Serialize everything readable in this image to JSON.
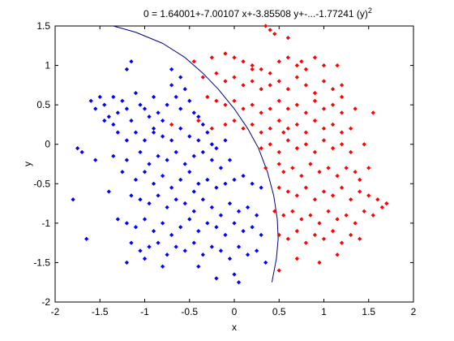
{
  "chart_data": {
    "type": "scatter",
    "title": "0 = 1.64001+-7.00107 x+-3.85508 y+-...-1.77241 (y)",
    "title_superscript": "2",
    "xlabel": "x",
    "ylabel": "y",
    "xlim": [
      -2,
      2
    ],
    "ylim": [
      -2,
      1.5
    ],
    "xticks": [
      "-2",
      "-1.5",
      "-1",
      "-0.5",
      "0",
      "0.5",
      "1",
      "1.5",
      "2"
    ],
    "yticks": [
      "-2",
      "-1.5",
      "-1",
      "-0.5",
      "0",
      "0.5",
      "1",
      "1.5"
    ],
    "grid": false,
    "colors": {
      "class_blue": "#0000ff",
      "class_red": "#ff0000",
      "boundary": "#000080"
    },
    "series": [
      {
        "color": "#0000ff",
        "marker": "diamond",
        "points": [
          [
            -1.6,
            0.55
          ],
          [
            -1.55,
            0.45
          ],
          [
            -1.5,
            0.6
          ],
          [
            -1.45,
            0.5
          ],
          [
            -1.4,
            0.35
          ],
          [
            -1.35,
            0.25
          ],
          [
            -1.3,
            0.4
          ],
          [
            -1.25,
            0.55
          ],
          [
            -1.2,
            0.45
          ],
          [
            -1.15,
            0.3
          ],
          [
            -1.1,
            0.65
          ],
          [
            -1.05,
            0.5
          ],
          [
            -1.0,
            0.45
          ],
          [
            -0.95,
            0.35
          ],
          [
            -0.9,
            0.6
          ],
          [
            -0.85,
            0.4
          ],
          [
            -0.8,
            0.3
          ],
          [
            -0.75,
            0.5
          ],
          [
            -0.7,
            0.75
          ],
          [
            -0.65,
            0.6
          ],
          [
            -0.6,
            0.45
          ],
          [
            -0.55,
            0.7
          ],
          [
            -0.5,
            0.55
          ],
          [
            -0.45,
            0.4
          ],
          [
            -0.4,
            0.35
          ],
          [
            -0.35,
            0.25
          ],
          [
            -1.2,
            0.95
          ],
          [
            -1.15,
            1.05
          ],
          [
            -0.7,
            0.95
          ],
          [
            -0.6,
            0.85
          ],
          [
            -1.3,
            0.15
          ],
          [
            -1.2,
            0.05
          ],
          [
            -1.1,
            0.15
          ],
          [
            -1.0,
            0.05
          ],
          [
            -0.9,
            0.2
          ],
          [
            -0.8,
            0.1
          ],
          [
            -0.7,
            0.05
          ],
          [
            -0.6,
            0.2
          ],
          [
            -0.5,
            0.1
          ],
          [
            -0.4,
            0.05
          ],
          [
            -0.3,
            0.15
          ],
          [
            -0.25,
            0.0
          ],
          [
            -0.2,
            -0.05
          ],
          [
            -0.1,
            0.05
          ],
          [
            -1.75,
            -0.05
          ],
          [
            -1.7,
            -0.1
          ],
          [
            -1.55,
            -0.2
          ],
          [
            -1.35,
            -0.15
          ],
          [
            -1.2,
            -0.2
          ],
          [
            -1.05,
            -0.1
          ],
          [
            -0.95,
            -0.25
          ],
          [
            -0.85,
            -0.15
          ],
          [
            -0.75,
            -0.2
          ],
          [
            -0.65,
            -0.1
          ],
          [
            -0.55,
            -0.25
          ],
          [
            -0.45,
            -0.15
          ],
          [
            -0.35,
            -0.1
          ],
          [
            -0.25,
            -0.2
          ],
          [
            -0.15,
            -0.3
          ],
          [
            -0.05,
            -0.2
          ],
          [
            -1.25,
            -0.35
          ],
          [
            -1.1,
            -0.45
          ],
          [
            -1.0,
            -0.35
          ],
          [
            -0.9,
            -0.5
          ],
          [
            -0.8,
            -0.4
          ],
          [
            -0.7,
            -0.55
          ],
          [
            -0.6,
            -0.45
          ],
          [
            -0.5,
            -0.35
          ],
          [
            -0.4,
            -0.5
          ],
          [
            -0.3,
            -0.45
          ],
          [
            -0.2,
            -0.55
          ],
          [
            -0.1,
            -0.5
          ],
          [
            0.0,
            -0.45
          ],
          [
            0.1,
            -0.4
          ],
          [
            0.2,
            -0.5
          ],
          [
            0.3,
            -0.55
          ],
          [
            -1.4,
            -0.6
          ],
          [
            -1.8,
            -0.7
          ],
          [
            -1.15,
            -0.65
          ],
          [
            -1.05,
            -0.7
          ],
          [
            -0.95,
            -0.75
          ],
          [
            -0.85,
            -0.65
          ],
          [
            -0.75,
            -0.8
          ],
          [
            -0.65,
            -0.7
          ],
          [
            -0.55,
            -0.75
          ],
          [
            -0.45,
            -0.85
          ],
          [
            -0.35,
            -0.7
          ],
          [
            -0.25,
            -0.8
          ],
          [
            -0.15,
            -0.9
          ],
          [
            -0.05,
            -0.75
          ],
          [
            0.05,
            -0.85
          ],
          [
            0.15,
            -0.8
          ],
          [
            0.25,
            -0.9
          ],
          [
            -1.3,
            -0.95
          ],
          [
            -1.2,
            -1.0
          ],
          [
            -1.1,
            -1.05
          ],
          [
            -1.0,
            -0.95
          ],
          [
            -0.9,
            -1.1
          ],
          [
            -0.8,
            -1.0
          ],
          [
            -0.7,
            -1.15
          ],
          [
            -0.6,
            -1.05
          ],
          [
            -0.5,
            -0.95
          ],
          [
            -0.4,
            -1.1
          ],
          [
            -0.3,
            -1.0
          ],
          [
            -0.2,
            -1.05
          ],
          [
            -0.1,
            -1.15
          ],
          [
            0.0,
            -1.0
          ],
          [
            0.1,
            -1.1
          ],
          [
            0.2,
            -1.05
          ],
          [
            0.3,
            -1.15
          ],
          [
            -1.65,
            -1.2
          ],
          [
            -1.15,
            -1.25
          ],
          [
            -1.05,
            -1.35
          ],
          [
            -0.95,
            -1.3
          ],
          [
            -0.85,
            -1.25
          ],
          [
            -0.75,
            -1.4
          ],
          [
            -0.65,
            -1.3
          ],
          [
            -0.55,
            -1.35
          ],
          [
            -0.45,
            -1.25
          ],
          [
            -0.35,
            -1.4
          ],
          [
            -0.25,
            -1.3
          ],
          [
            -0.15,
            -1.35
          ],
          [
            -0.05,
            -1.45
          ],
          [
            0.05,
            -1.3
          ],
          [
            0.15,
            -1.4
          ],
          [
            0.25,
            -1.35
          ],
          [
            -1.2,
            -1.5
          ],
          [
            -1.0,
            -1.45
          ],
          [
            -0.8,
            -1.55
          ],
          [
            -0.4,
            -1.55
          ],
          [
            -0.2,
            -1.7
          ],
          [
            0.0,
            -1.65
          ],
          [
            0.05,
            -1.75
          ],
          [
            0.35,
            -1.5
          ],
          [
            -1.35,
            0.6
          ],
          [
            -1.45,
            0.3
          ],
          [
            -0.9,
            0.15
          ],
          [
            -0.45,
            -0.6
          ]
        ]
      },
      {
        "color": "#ff0000",
        "marker": "diamond",
        "points": [
          [
            0.35,
            1.5
          ],
          [
            0.4,
            1.45
          ],
          [
            0.45,
            1.4
          ],
          [
            0.6,
            1.35
          ],
          [
            -0.45,
            1.05
          ],
          [
            -0.25,
            1.1
          ],
          [
            -0.1,
            1.15
          ],
          [
            0.0,
            1.1
          ],
          [
            0.1,
            1.05
          ],
          [
            0.2,
            1.0
          ],
          [
            0.3,
            0.95
          ],
          [
            0.4,
            0.9
          ],
          [
            0.5,
            1.05
          ],
          [
            0.6,
            1.1
          ],
          [
            0.7,
            1.0
          ],
          [
            0.75,
            1.05
          ],
          [
            0.8,
            0.95
          ],
          [
            0.9,
            1.1
          ],
          [
            1.0,
            1.0
          ],
          [
            1.15,
            1.0
          ],
          [
            -0.35,
            0.85
          ],
          [
            -0.2,
            0.9
          ],
          [
            -0.1,
            0.8
          ],
          [
            0.0,
            0.85
          ],
          [
            0.1,
            0.75
          ],
          [
            0.2,
            0.8
          ],
          [
            0.3,
            0.7
          ],
          [
            0.4,
            0.75
          ],
          [
            0.5,
            0.8
          ],
          [
            0.6,
            0.7
          ],
          [
            0.7,
            0.85
          ],
          [
            0.8,
            0.75
          ],
          [
            0.9,
            0.65
          ],
          [
            1.0,
            0.8
          ],
          [
            1.1,
            0.7
          ],
          [
            1.2,
            0.75
          ],
          [
            -0.3,
            0.6
          ],
          [
            -0.2,
            0.55
          ],
          [
            -0.1,
            0.5
          ],
          [
            0.0,
            0.55
          ],
          [
            0.1,
            0.45
          ],
          [
            0.2,
            0.5
          ],
          [
            0.3,
            0.4
          ],
          [
            0.4,
            0.45
          ],
          [
            0.5,
            0.55
          ],
          [
            0.6,
            0.45
          ],
          [
            0.7,
            0.5
          ],
          [
            0.8,
            0.4
          ],
          [
            0.9,
            0.55
          ],
          [
            1.0,
            0.45
          ],
          [
            1.1,
            0.5
          ],
          [
            1.2,
            0.4
          ],
          [
            1.35,
            0.45
          ],
          [
            1.55,
            0.4
          ],
          [
            -0.7,
            0.25
          ],
          [
            -0.4,
            0.3
          ],
          [
            -0.25,
            0.2
          ],
          [
            -0.1,
            0.25
          ],
          [
            0.0,
            0.3
          ],
          [
            0.1,
            0.2
          ],
          [
            0.2,
            0.25
          ],
          [
            0.3,
            0.15
          ],
          [
            0.4,
            0.2
          ],
          [
            0.5,
            0.3
          ],
          [
            0.6,
            0.2
          ],
          [
            0.7,
            0.25
          ],
          [
            0.8,
            0.15
          ],
          [
            0.9,
            0.3
          ],
          [
            1.0,
            0.2
          ],
          [
            1.1,
            0.25
          ],
          [
            1.2,
            0.15
          ],
          [
            1.3,
            0.2
          ],
          [
            0.3,
            -0.05
          ],
          [
            0.4,
            0.0
          ],
          [
            0.5,
            -0.1
          ],
          [
            0.6,
            0.05
          ],
          [
            0.7,
            -0.05
          ],
          [
            0.8,
            0.0
          ],
          [
            0.9,
            -0.1
          ],
          [
            1.0,
            0.05
          ],
          [
            1.1,
            -0.05
          ],
          [
            1.2,
            0.0
          ],
          [
            1.3,
            -0.1
          ],
          [
            1.45,
            0.0
          ],
          [
            0.35,
            -0.3
          ],
          [
            0.5,
            -0.25
          ],
          [
            0.55,
            -0.35
          ],
          [
            0.65,
            -0.3
          ],
          [
            0.75,
            -0.4
          ],
          [
            0.85,
            -0.25
          ],
          [
            0.95,
            -0.35
          ],
          [
            1.05,
            -0.3
          ],
          [
            1.15,
            -0.4
          ],
          [
            1.25,
            -0.3
          ],
          [
            1.35,
            -0.35
          ],
          [
            1.5,
            -0.3
          ],
          [
            0.5,
            -0.55
          ],
          [
            0.6,
            -0.6
          ],
          [
            0.7,
            -0.65
          ],
          [
            0.8,
            -0.55
          ],
          [
            0.9,
            -0.7
          ],
          [
            1.0,
            -0.6
          ],
          [
            1.1,
            -0.65
          ],
          [
            1.2,
            -0.55
          ],
          [
            1.3,
            -0.7
          ],
          [
            1.4,
            -0.6
          ],
          [
            1.5,
            -0.65
          ],
          [
            1.6,
            -0.7
          ],
          [
            1.7,
            -0.75
          ],
          [
            0.45,
            -0.85
          ],
          [
            0.55,
            -0.9
          ],
          [
            0.65,
            -0.85
          ],
          [
            0.75,
            -0.95
          ],
          [
            0.85,
            -0.9
          ],
          [
            0.95,
            -1.0
          ],
          [
            1.05,
            -0.85
          ],
          [
            1.15,
            -0.95
          ],
          [
            1.25,
            -0.9
          ],
          [
            1.35,
            -1.0
          ],
          [
            1.45,
            -0.85
          ],
          [
            1.55,
            -0.9
          ],
          [
            1.65,
            -0.8
          ],
          [
            0.5,
            -1.15
          ],
          [
            0.6,
            -1.2
          ],
          [
            0.7,
            -1.1
          ],
          [
            0.8,
            -1.25
          ],
          [
            0.9,
            -1.15
          ],
          [
            1.0,
            -1.2
          ],
          [
            1.1,
            -1.1
          ],
          [
            1.2,
            -1.25
          ],
          [
            1.3,
            -1.15
          ],
          [
            1.4,
            -1.2
          ],
          [
            0.5,
            -1.6
          ],
          [
            0.7,
            -1.45
          ],
          [
            0.95,
            -1.5
          ],
          [
            1.15,
            -1.4
          ],
          [
            1.2,
            0.6
          ],
          [
            0.2,
            0.95
          ],
          [
            0.55,
            0.15
          ],
          [
            1.4,
            -0.45
          ]
        ]
      }
    ],
    "boundary_curve": [
      [
        -1.35,
        1.5
      ],
      [
        -1.1,
        1.42
      ],
      [
        -0.8,
        1.28
      ],
      [
        -0.55,
        1.1
      ],
      [
        -0.35,
        0.9
      ],
      [
        -0.18,
        0.7
      ],
      [
        0.0,
        0.45
      ],
      [
        0.15,
        0.2
      ],
      [
        0.27,
        -0.05
      ],
      [
        0.37,
        -0.35
      ],
      [
        0.44,
        -0.65
      ],
      [
        0.48,
        -0.95
      ],
      [
        0.49,
        -1.2
      ],
      [
        0.47,
        -1.45
      ],
      [
        0.42,
        -1.75
      ]
    ]
  }
}
